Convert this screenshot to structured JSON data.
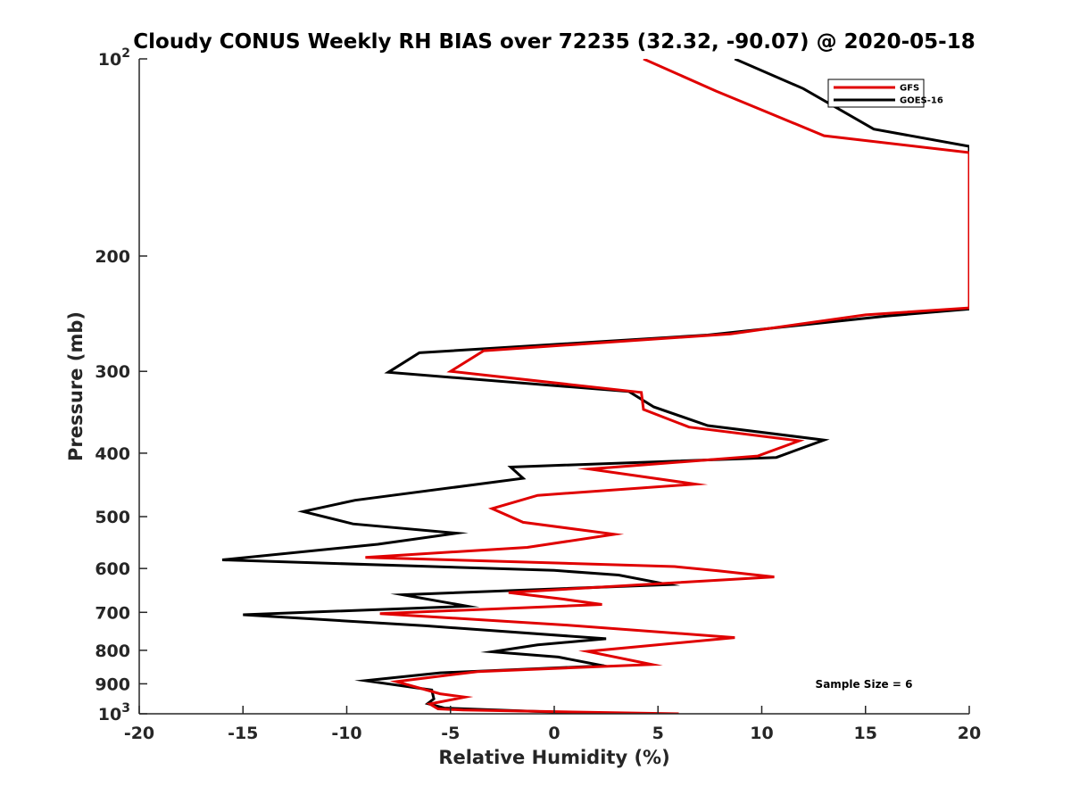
{
  "chart_data": {
    "type": "line",
    "title": "Cloudy CONUS Weekly RH BIAS over 72235 (32.32, -90.07) @ 2020-05-18",
    "xlabel": "Relative Humidity (%)",
    "ylabel": "Pressure (mb)",
    "xlim": [
      -20,
      20
    ],
    "ylim": [
      100,
      1000
    ],
    "yscale": "log",
    "y_reversed": true,
    "grid": false,
    "legend_position": "top-right",
    "x_ticks": [
      -20,
      -15,
      -10,
      -5,
      0,
      5,
      10,
      15,
      20
    ],
    "x_tick_labels": [
      "-20",
      "-15",
      "-10",
      "-5",
      "0",
      "5",
      "10",
      "15",
      "20"
    ],
    "y_ticks": [
      {
        "value": 100,
        "base": "10",
        "exp": "2"
      },
      {
        "value": 200,
        "label": "200"
      },
      {
        "value": 300,
        "label": "300"
      },
      {
        "value": 400,
        "label": "400"
      },
      {
        "value": 500,
        "label": "500"
      },
      {
        "value": 600,
        "label": "600"
      },
      {
        "value": 700,
        "label": "700"
      },
      {
        "value": 800,
        "label": "800"
      },
      {
        "value": 900,
        "label": "900"
      },
      {
        "value": 1000,
        "base": "10",
        "exp": "3"
      }
    ],
    "series": [
      {
        "name": "GFS",
        "color": "#e00000",
        "points": [
          [
            4.3,
            100
          ],
          [
            7.8,
            112
          ],
          [
            13.0,
            131
          ],
          [
            20.0,
            139
          ],
          [
            20.0,
            240
          ],
          [
            15.0,
            246
          ],
          [
            8.5,
            263
          ],
          [
            -3.4,
            279
          ],
          [
            -5.0,
            300
          ],
          [
            4.2,
            323
          ],
          [
            4.3,
            343
          ],
          [
            6.5,
            365
          ],
          [
            11.8,
            383
          ],
          [
            9.8,
            404
          ],
          [
            1.7,
            423
          ],
          [
            6.8,
            446
          ],
          [
            -0.8,
            464
          ],
          [
            -3.0,
            486
          ],
          [
            -1.5,
            510
          ],
          [
            2.9,
            532
          ],
          [
            -1.3,
            557
          ],
          [
            -9.1,
            577
          ],
          [
            5.8,
            596
          ],
          [
            7.9,
            605
          ],
          [
            10.6,
            618
          ],
          [
            -2.2,
            653
          ],
          [
            0.4,
            668
          ],
          [
            2.3,
            681
          ],
          [
            -8.4,
            703
          ],
          [
            0.6,
            732
          ],
          [
            8.7,
            765
          ],
          [
            1.6,
            803
          ],
          [
            4.7,
            841
          ],
          [
            -3.7,
            862
          ],
          [
            -7.6,
            893
          ],
          [
            -5.5,
            932
          ],
          [
            -4.3,
            943
          ],
          [
            -6.0,
            966
          ],
          [
            -5.6,
            983
          ],
          [
            -4.4,
            987
          ],
          [
            6.0,
            1000
          ]
        ]
      },
      {
        "name": "GOES-16",
        "color": "#000000",
        "points": [
          [
            8.7,
            100
          ],
          [
            12.0,
            111
          ],
          [
            15.4,
            128
          ],
          [
            20.0,
            136
          ],
          [
            20.0,
            241
          ],
          [
            16.0,
            247
          ],
          [
            7.4,
            264
          ],
          [
            -6.5,
            281
          ],
          [
            -8.0,
            301
          ],
          [
            3.6,
            322
          ],
          [
            4.8,
            340
          ],
          [
            7.4,
            363
          ],
          [
            13.0,
            382
          ],
          [
            10.7,
            406
          ],
          [
            -2.1,
            420
          ],
          [
            -1.5,
            437
          ],
          [
            -9.6,
            472
          ],
          [
            -12.1,
            491
          ],
          [
            -9.7,
            513
          ],
          [
            -4.7,
            530
          ],
          [
            -8.5,
            551
          ],
          [
            -16.0,
            582
          ],
          [
            0.0,
            604
          ],
          [
            3.1,
            614
          ],
          [
            5.5,
            635
          ],
          [
            -7.3,
            658
          ],
          [
            -5.8,
            671
          ],
          [
            -4.2,
            685
          ],
          [
            -15.0,
            706
          ],
          [
            -6.2,
            734
          ],
          [
            2.5,
            768
          ],
          [
            -0.8,
            785
          ],
          [
            -3.0,
            804
          ],
          [
            0.2,
            819
          ],
          [
            2.4,
            845
          ],
          [
            -5.5,
            866
          ],
          [
            -9.1,
            890
          ],
          [
            -5.9,
            920
          ],
          [
            -5.8,
            949
          ],
          [
            -6.1,
            965
          ],
          [
            -5.3,
            980
          ],
          [
            2.3,
            1000
          ]
        ]
      }
    ],
    "annotations": [
      "Sample Size = 6"
    ]
  }
}
